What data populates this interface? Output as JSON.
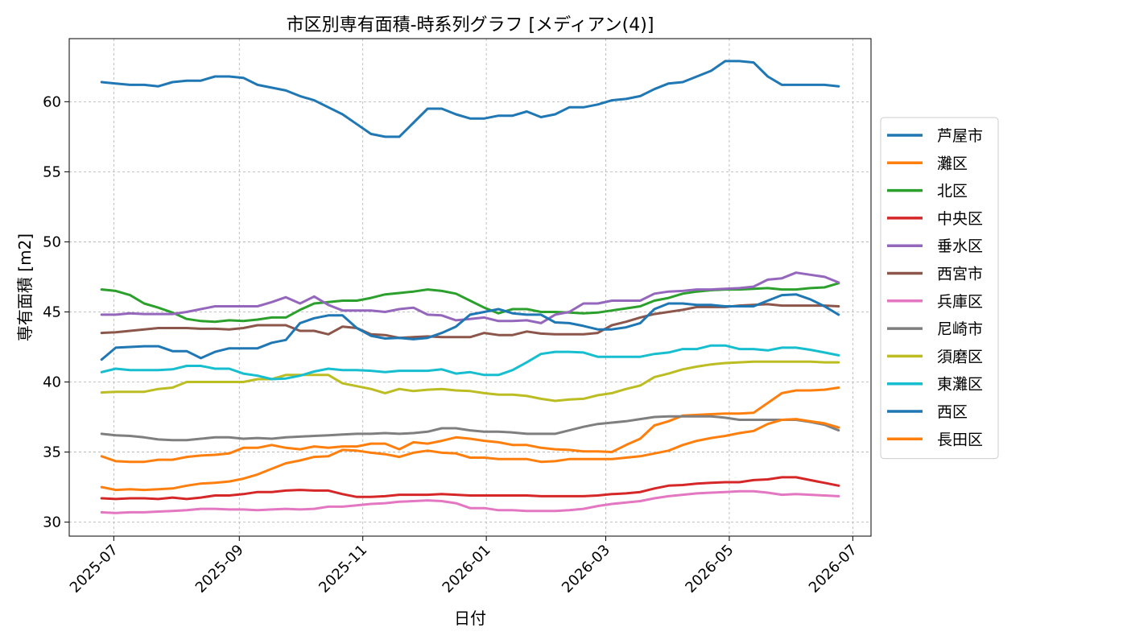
{
  "chart_data": {
    "type": "line",
    "title": "市区別専有面積-時系列グラフ [メディアン(4)]",
    "xlabel": "日付",
    "ylabel": "専有面積 [m2]",
    "x_axis": "date",
    "xlim": [
      "2025-06-09",
      "2026-07-10"
    ],
    "ylim": [
      29,
      64.5
    ],
    "x_ticks": [
      "2025-07-01",
      "2025-09-01",
      "2025-11-01",
      "2026-01-01",
      "2026-03-01",
      "2026-05-01",
      "2026-07-01"
    ],
    "x_tick_labels": [
      "2025-07",
      "2025-09",
      "2025-11",
      "2026-01",
      "2026-03",
      "2026-05",
      "2026-07"
    ],
    "y_ticks": [
      30,
      35,
      40,
      45,
      50,
      55,
      60
    ],
    "y_tick_labels": [
      "30",
      "35",
      "40",
      "45",
      "50",
      "55",
      "60"
    ],
    "grid": true,
    "legend_position": "right",
    "x": [
      "2025-06-25",
      "2025-07-02",
      "2025-07-09",
      "2025-07-16",
      "2025-07-23",
      "2025-07-30",
      "2025-08-06",
      "2025-08-13",
      "2025-08-20",
      "2025-08-27",
      "2025-09-03",
      "2025-09-10",
      "2025-09-17",
      "2025-09-24",
      "2025-10-01",
      "2025-10-08",
      "2025-10-15",
      "2025-10-22",
      "2025-10-29",
      "2025-11-05",
      "2025-11-12",
      "2025-11-19",
      "2025-11-26",
      "2025-12-03",
      "2025-12-10",
      "2025-12-17",
      "2025-12-24",
      "2025-12-31",
      "2026-01-07",
      "2026-01-14",
      "2026-01-21",
      "2026-01-28",
      "2026-02-04",
      "2026-02-11",
      "2026-02-18",
      "2026-02-25",
      "2026-03-04",
      "2026-03-11",
      "2026-03-18",
      "2026-03-25",
      "2026-04-01",
      "2026-04-08",
      "2026-04-15",
      "2026-04-22",
      "2026-04-29",
      "2026-05-06",
      "2026-05-13",
      "2026-05-20",
      "2026-05-27",
      "2026-06-03",
      "2026-06-10",
      "2026-06-17",
      "2026-06-24"
    ],
    "series": [
      {
        "name": "芦屋市",
        "color": "#1f77b4",
        "values": [
          61.4,
          61.3,
          61.2,
          61.2,
          61.1,
          61.4,
          61.5,
          61.5,
          61.8,
          61.8,
          61.7,
          61.2,
          61.0,
          60.8,
          60.4,
          60.1,
          59.6,
          59.1,
          58.4,
          57.7,
          57.5,
          57.5,
          58.5,
          59.5,
          59.5,
          59.1,
          58.8,
          58.8,
          59.0,
          59.0,
          59.3,
          58.9,
          59.1,
          59.6,
          59.6,
          59.8,
          60.1,
          60.2,
          60.4,
          60.9,
          61.3,
          61.4,
          61.8,
          62.2,
          62.9,
          62.9,
          62.8,
          61.8,
          61.2,
          61.2,
          61.2,
          61.2,
          61.1
        ]
      },
      {
        "name": "灘区",
        "color": "#ff7f0e",
        "values": [
          34.7,
          34.35,
          34.3,
          34.3,
          34.45,
          34.45,
          34.65,
          34.75,
          34.8,
          34.9,
          35.3,
          35.3,
          35.5,
          35.3,
          35.2,
          35.4,
          35.3,
          35.4,
          35.4,
          35.6,
          35.6,
          35.2,
          35.7,
          35.6,
          35.8,
          36.05,
          35.95,
          35.8,
          35.7,
          35.5,
          35.5,
          35.3,
          35.2,
          35.15,
          35.05,
          35.05,
          35.0,
          35.5,
          35.95,
          36.9,
          37.2,
          37.6,
          37.65,
          37.7,
          37.75,
          37.75,
          37.8,
          38.5,
          39.2,
          39.4,
          39.4,
          39.45,
          39.6
        ]
      },
      {
        "name": "北区",
        "color": "#2ca02c",
        "values": [
          46.6,
          46.5,
          46.2,
          45.6,
          45.3,
          44.95,
          44.5,
          44.35,
          44.3,
          44.4,
          44.35,
          44.45,
          44.6,
          44.6,
          45.15,
          45.6,
          45.7,
          45.8,
          45.8,
          46.0,
          46.25,
          46.35,
          46.45,
          46.6,
          46.5,
          46.3,
          45.8,
          45.3,
          44.9,
          45.2,
          45.2,
          45.0,
          45.0,
          44.95,
          44.9,
          44.95,
          45.1,
          45.25,
          45.4,
          45.8,
          46.0,
          46.3,
          46.45,
          46.55,
          46.6,
          46.6,
          46.65,
          46.7,
          46.6,
          46.6,
          46.7,
          46.75,
          47.05
        ]
      },
      {
        "name": "中央区",
        "color": "#d62728",
        "values": [
          31.7,
          31.65,
          31.7,
          31.7,
          31.65,
          31.75,
          31.65,
          31.75,
          31.9,
          31.9,
          32.0,
          32.15,
          32.15,
          32.25,
          32.3,
          32.25,
          32.25,
          32.0,
          31.8,
          31.8,
          31.85,
          31.95,
          31.95,
          31.95,
          32.0,
          31.95,
          31.9,
          31.9,
          31.9,
          31.9,
          31.9,
          31.85,
          31.85,
          31.85,
          31.85,
          31.9,
          32.0,
          32.05,
          32.15,
          32.4,
          32.6,
          32.65,
          32.75,
          32.8,
          32.85,
          32.85,
          33.0,
          33.05,
          33.2,
          33.2,
          33.0,
          32.8,
          32.6
        ]
      },
      {
        "name": "垂水区",
        "color": "#9467bd",
        "values": [
          44.8,
          44.8,
          44.9,
          44.85,
          44.85,
          44.85,
          45.0,
          45.2,
          45.4,
          45.4,
          45.4,
          45.4,
          45.7,
          46.05,
          45.6,
          46.1,
          45.5,
          45.1,
          45.1,
          45.1,
          45.0,
          45.2,
          45.3,
          44.8,
          44.75,
          44.4,
          44.5,
          44.6,
          44.35,
          44.35,
          44.4,
          44.2,
          44.8,
          45.0,
          45.6,
          45.6,
          45.8,
          45.8,
          45.8,
          46.3,
          46.45,
          46.5,
          46.6,
          46.6,
          46.65,
          46.7,
          46.8,
          47.3,
          47.4,
          47.8,
          47.65,
          47.5,
          47.1
        ]
      },
      {
        "name": "西宮市",
        "color": "#8c564b",
        "values": [
          43.5,
          43.55,
          43.65,
          43.75,
          43.85,
          43.85,
          43.85,
          43.8,
          43.8,
          43.75,
          43.85,
          44.05,
          44.05,
          44.05,
          43.65,
          43.65,
          43.4,
          43.95,
          43.85,
          43.4,
          43.35,
          43.15,
          43.2,
          43.25,
          43.2,
          43.2,
          43.2,
          43.5,
          43.35,
          43.35,
          43.6,
          43.45,
          43.4,
          43.4,
          43.4,
          43.5,
          44.05,
          44.3,
          44.6,
          44.85,
          45.0,
          45.15,
          45.35,
          45.35,
          45.35,
          45.45,
          45.5,
          45.55,
          45.45,
          45.45,
          45.45,
          45.45,
          45.4
        ]
      },
      {
        "name": "兵庫区",
        "color": "#e377c2",
        "values": [
          30.7,
          30.65,
          30.7,
          30.7,
          30.75,
          30.8,
          30.85,
          30.95,
          30.95,
          30.9,
          30.9,
          30.85,
          30.9,
          30.95,
          30.9,
          30.95,
          31.1,
          31.1,
          31.2,
          31.3,
          31.35,
          31.45,
          31.5,
          31.55,
          31.5,
          31.35,
          31.0,
          31.0,
          30.85,
          30.85,
          30.8,
          30.8,
          30.8,
          30.85,
          30.95,
          31.15,
          31.3,
          31.4,
          31.5,
          31.7,
          31.85,
          31.95,
          32.05,
          32.1,
          32.15,
          32.2,
          32.2,
          32.1,
          31.95,
          32.0,
          31.95,
          31.9,
          31.85
        ]
      },
      {
        "name": "尼崎市",
        "color": "#7f7f7f",
        "values": [
          36.3,
          36.2,
          36.15,
          36.05,
          35.9,
          35.85,
          35.85,
          35.95,
          36.05,
          36.05,
          35.95,
          36.0,
          35.95,
          36.05,
          36.1,
          36.15,
          36.2,
          36.25,
          36.3,
          36.3,
          36.35,
          36.3,
          36.35,
          36.45,
          36.7,
          36.7,
          36.55,
          36.45,
          36.45,
          36.4,
          36.3,
          36.3,
          36.3,
          36.55,
          36.8,
          37.0,
          37.1,
          37.2,
          37.35,
          37.5,
          37.55,
          37.55,
          37.55,
          37.55,
          37.45,
          37.3,
          37.3,
          37.3,
          37.3,
          37.3,
          37.15,
          36.95,
          36.55
        ]
      },
      {
        "name": "須磨区",
        "color": "#bcbd22",
        "values": [
          39.25,
          39.3,
          39.3,
          39.3,
          39.5,
          39.6,
          40.0,
          40.0,
          40.0,
          40.0,
          40.0,
          40.2,
          40.2,
          40.5,
          40.5,
          40.5,
          40.5,
          39.9,
          39.7,
          39.5,
          39.2,
          39.5,
          39.35,
          39.45,
          39.5,
          39.4,
          39.35,
          39.2,
          39.1,
          39.1,
          39.0,
          38.8,
          38.65,
          38.75,
          38.8,
          39.05,
          39.2,
          39.5,
          39.75,
          40.35,
          40.6,
          40.9,
          41.1,
          41.25,
          41.35,
          41.4,
          41.45,
          41.45,
          41.45,
          41.45,
          41.45,
          41.4,
          41.4
        ]
      },
      {
        "name": "東灘区",
        "color": "#17becf",
        "values": [
          40.7,
          40.95,
          40.85,
          40.85,
          40.85,
          40.9,
          41.15,
          41.15,
          40.95,
          40.95,
          40.6,
          40.45,
          40.2,
          40.25,
          40.45,
          40.75,
          40.95,
          40.85,
          40.85,
          40.8,
          40.7,
          40.8,
          40.8,
          40.8,
          40.9,
          40.6,
          40.7,
          40.5,
          40.5,
          40.85,
          41.4,
          42.0,
          42.15,
          42.15,
          42.1,
          41.8,
          41.8,
          41.8,
          41.8,
          42.0,
          42.1,
          42.35,
          42.35,
          42.6,
          42.6,
          42.35,
          42.35,
          42.25,
          42.45,
          42.45,
          42.3,
          42.1,
          41.9
        ]
      },
      {
        "name": "西区",
        "color": "#1f77b4",
        "values": [
          41.6,
          42.45,
          42.5,
          42.55,
          42.55,
          42.2,
          42.2,
          41.7,
          42.15,
          42.4,
          42.4,
          42.4,
          42.8,
          43.0,
          44.2,
          44.55,
          44.75,
          44.75,
          43.85,
          43.3,
          43.1,
          43.15,
          43.05,
          43.15,
          43.5,
          43.95,
          44.8,
          45.0,
          45.2,
          44.9,
          44.8,
          44.8,
          44.25,
          44.2,
          44.0,
          43.75,
          43.75,
          43.9,
          44.2,
          45.2,
          45.6,
          45.6,
          45.5,
          45.5,
          45.4,
          45.4,
          45.4,
          45.8,
          46.2,
          46.25,
          45.9,
          45.4,
          44.8
        ]
      },
      {
        "name": "長田区",
        "color": "#ff7f0e",
        "values": [
          32.5,
          32.3,
          32.35,
          32.3,
          32.35,
          32.4,
          32.6,
          32.75,
          32.8,
          32.9,
          33.1,
          33.4,
          33.8,
          34.2,
          34.4,
          34.65,
          34.7,
          35.15,
          35.1,
          34.95,
          34.85,
          34.65,
          34.95,
          35.1,
          34.95,
          34.9,
          34.6,
          34.6,
          34.5,
          34.5,
          34.5,
          34.3,
          34.35,
          34.5,
          34.5,
          34.5,
          34.5,
          34.6,
          34.7,
          34.9,
          35.1,
          35.5,
          35.8,
          36.0,
          36.15,
          36.35,
          36.5,
          37.0,
          37.3,
          37.35,
          37.2,
          37.05,
          36.75
        ]
      }
    ]
  }
}
